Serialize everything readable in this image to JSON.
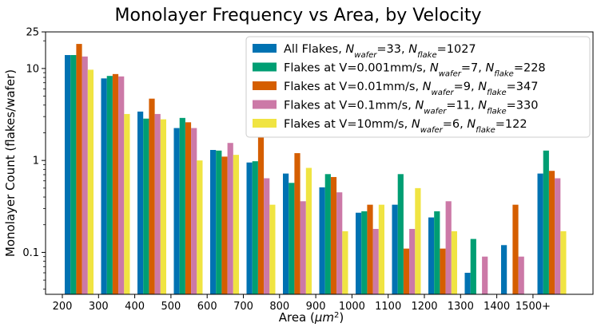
{
  "chart_data": {
    "type": "bar",
    "title": "Monolayer Frequency vs Area, by Velocity",
    "xlabel": "Area (μm²)",
    "xlabel_parts": {
      "main": "Area (",
      "unit": "μm",
      "exp": "2",
      "close": ")"
    },
    "ylabel": "Monolayer Count (flakes/wafer)",
    "yscale": "log",
    "ylim": [
      0.035,
      25
    ],
    "yticks": [
      {
        "value": 0.1,
        "label": "0.1"
      },
      {
        "value": 1,
        "label": "1"
      },
      {
        "value": 10,
        "label": "10"
      },
      {
        "value": 25,
        "label": "25"
      }
    ],
    "x_tick_labels": [
      "200",
      "300",
      "400",
      "500",
      "600",
      "700",
      "800",
      "900",
      "1000",
      "1100",
      "1200",
      "1300",
      "1400",
      "1500+"
    ],
    "categories": [
      "200-300",
      "300-400",
      "400-500",
      "500-600",
      "600-700",
      "700-800",
      "800-900",
      "900-1000",
      "1000-1100",
      "1100-1200",
      "1200-1300",
      "1300-1400",
      "1400-1500",
      "1500+"
    ],
    "series": [
      {
        "name": "All Flakes",
        "legend": {
          "prefix": "All Flakes, ",
          "nwafer": "33",
          "nflake": "1027"
        },
        "color": "#0072b2",
        "values": [
          14.0,
          7.8,
          3.4,
          2.25,
          1.3,
          0.95,
          0.72,
          0.51,
          0.27,
          0.33,
          0.24,
          0.06,
          0.12,
          0.72
        ]
      },
      {
        "name": "Flakes at V=0.001mm/s",
        "legend": {
          "prefix": "Flakes at V=0.001mm/s, ",
          "nwafer": "7",
          "nflake": "228"
        },
        "color": "#009e73",
        "values": [
          14.0,
          8.3,
          2.85,
          2.9,
          1.28,
          0.98,
          0.57,
          0.71,
          0.28,
          0.71,
          0.28,
          0.14,
          0,
          1.28
        ]
      },
      {
        "name": "Flakes at V=0.01mm/s",
        "legend": {
          "prefix": "Flakes at V=0.01mm/s, ",
          "nwafer": "9",
          "nflake": "347"
        },
        "color": "#d55e00",
        "values": [
          18.5,
          8.7,
          4.7,
          2.6,
          1.1,
          1.8,
          1.2,
          0.66,
          0.33,
          0.11,
          0.11,
          0,
          0.33,
          0.77
        ]
      },
      {
        "name": "Flakes at V=0.1mm/s",
        "legend": {
          "prefix": "Flakes at V=0.1mm/s, ",
          "nwafer": "11",
          "nflake": "330"
        },
        "color": "#cc79a7",
        "values": [
          13.5,
          8.2,
          3.2,
          2.25,
          1.55,
          0.64,
          0.36,
          0.45,
          0.18,
          0.18,
          0.36,
          0.09,
          0.09,
          0.64
        ]
      },
      {
        "name": "Flakes at V=10mm/s",
        "legend": {
          "prefix": "Flakes at V=10mm/s, ",
          "nwafer": "6",
          "nflake": "122"
        },
        "color": "#f0e442",
        "values": [
          9.7,
          3.2,
          2.8,
          1.0,
          1.15,
          0.33,
          0.83,
          0.17,
          0.33,
          0.5,
          0.17,
          0,
          0,
          0.17
        ]
      }
    ],
    "legend_position": "top-right",
    "legend_symbols": {
      "nwafer": "N",
      "nwafer_sub": "wafer",
      "nflake": "N",
      "nflake_sub": "flake",
      "eq": "="
    }
  }
}
